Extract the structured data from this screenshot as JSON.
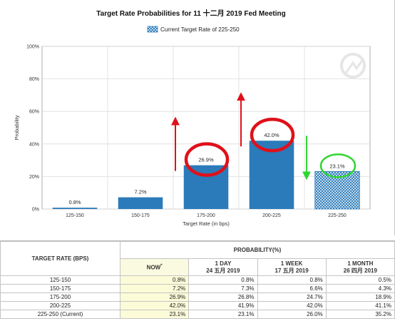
{
  "chart_data": {
    "type": "bar",
    "title": "Target Rate Probabilities for 11 十二月 2019 Fed Meeting",
    "legend": {
      "label": "Current Target Rate of 225-250",
      "position": "top"
    },
    "xlabel": "Target Rate (in bps)",
    "ylabel": "Probability",
    "ylim": [
      0,
      100
    ],
    "yticks": [
      "0%",
      "20%",
      "40%",
      "60%",
      "80%",
      "100%"
    ],
    "ytick_values": [
      0,
      20,
      40,
      60,
      80,
      100
    ],
    "grid": true,
    "categories": [
      "125-150",
      "150-175",
      "175-200",
      "200-225",
      "225-250"
    ],
    "values": [
      0.8,
      7.2,
      26.9,
      42.0,
      23.1
    ],
    "value_labels": [
      "0.8%",
      "7.2%",
      "26.9%",
      "42.0%",
      "23.1%"
    ],
    "current_category": "225-250",
    "colors": {
      "bar": "#2b7bba",
      "current_bar": "#2b7bba",
      "circle_red": "#e0101a",
      "circle_green": "#2fd62f",
      "arrow_red": "#e0101a",
      "arrow_green": "#2fd62f"
    },
    "annotations": [
      {
        "type": "circle",
        "category": "175-200",
        "color": "red"
      },
      {
        "type": "circle",
        "category": "200-225",
        "color": "red"
      },
      {
        "type": "circle",
        "category": "225-250",
        "color": "green"
      },
      {
        "type": "arrow",
        "category": "175-200",
        "direction": "up",
        "color": "red"
      },
      {
        "type": "arrow",
        "category": "200-225",
        "direction": "up",
        "color": "red"
      },
      {
        "type": "arrow",
        "category": "225-250",
        "direction": "down",
        "color": "green"
      }
    ]
  },
  "table": {
    "rate_header": "TARGET RATE (BPS)",
    "prob_header": "PROBABILITY(%)",
    "columns": [
      {
        "line1": "NOW",
        "mark": "*",
        "line2": ""
      },
      {
        "line1": "1 DAY",
        "line2": "24 五月 2019"
      },
      {
        "line1": "1 WEEK",
        "line2": "17 五月 2019"
      },
      {
        "line1": "1 MONTH",
        "line2": "26 四月 2019"
      }
    ],
    "rows": [
      {
        "rate": "125-150",
        "values": [
          "0.8%",
          "0.8%",
          "0.8%",
          "0.5%"
        ]
      },
      {
        "rate": "150-175",
        "values": [
          "7.2%",
          "7.3%",
          "6.6%",
          "4.3%"
        ]
      },
      {
        "rate": "175-200",
        "values": [
          "26.9%",
          "26.8%",
          "24.7%",
          "18.9%"
        ]
      },
      {
        "rate": "200-225",
        "values": [
          "42.0%",
          "41.9%",
          "42.0%",
          "41.1%"
        ]
      },
      {
        "rate": "225-250 (Current)",
        "values": [
          "23.1%",
          "23.1%",
          "26.0%",
          "35.2%"
        ]
      }
    ]
  }
}
